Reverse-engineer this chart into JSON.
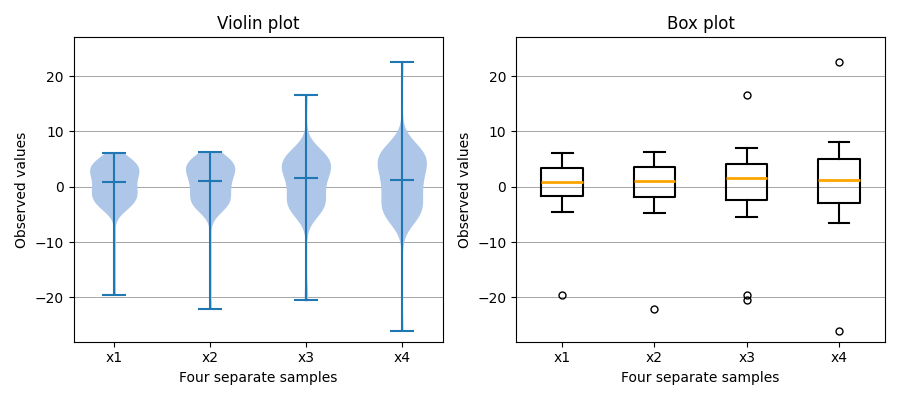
{
  "title_violin": "Violin plot",
  "title_box": "Box plot",
  "xlabel": "Four separate samples",
  "ylabel": "Observed values",
  "labels": [
    "x1",
    "x2",
    "x3",
    "x4"
  ],
  "violin_color": "#aec6e8",
  "violin_line_color": "#1f77b4",
  "median_color": "orange",
  "box_color": "black",
  "figsize": [
    9.0,
    4.0
  ],
  "dpi": 100,
  "data": {
    "x1": [
      3.7,
      2.1,
      -1.2,
      0.5,
      4.2,
      -3.1,
      1.8,
      -0.9,
      6.1,
      -2.3,
      3.0,
      -4.5,
      1.1,
      2.7,
      -1.8,
      5.3,
      -0.5,
      3.9,
      -2.1,
      0.8,
      4.5,
      -3.8,
      2.2,
      -1.5,
      3.3,
      0.1,
      -2.9,
      5.0,
      -1.0,
      2.6,
      -4.0,
      1.3,
      3.5,
      -0.7,
      2.9,
      -3.3,
      4.8,
      0.3,
      -2.5,
      1.6,
      3.1,
      -1.9,
      4.3,
      0.6,
      -3.6,
      2.4,
      -0.4,
      5.5,
      -2.0,
      3.2,
      -4.2,
      1.7,
      2.8,
      -1.3,
      4.0,
      -0.2,
      3.6,
      -2.7,
      0.9,
      4.7,
      -3.4,
      2.0,
      -0.8,
      3.8,
      0.4,
      -2.2,
      5.2,
      -1.6,
      3.4,
      -3.9,
      1.4,
      2.5,
      -0.6,
      4.4,
      -2.4,
      3.7,
      0.2,
      -1.1,
      4.9,
      -3.0,
      2.3,
      -0.3,
      3.3,
      -2.6,
      1.5,
      4.6,
      -1.7,
      2.1,
      -3.5,
      0.7,
      5.1,
      -2.8,
      3.0,
      -1.4,
      4.1,
      0.0,
      -2.0,
      5.4,
      -0.1,
      2.7,
      -19.5
    ],
    "x2": [
      4.1,
      -1.5,
      2.8,
      0.3,
      5.0,
      -2.7,
      3.3,
      -0.6,
      6.2,
      -3.0,
      2.0,
      -4.8,
      1.5,
      3.2,
      -2.1,
      5.5,
      0.1,
      4.2,
      -2.5,
      1.0,
      4.8,
      -4.0,
      2.6,
      -1.8,
      3.7,
      0.5,
      -3.2,
      5.3,
      -0.9,
      3.0,
      -4.3,
      1.8,
      3.9,
      -0.4,
      3.2,
      -3.5,
      5.1,
      0.7,
      -2.8,
      1.9,
      3.5,
      -2.0,
      4.6,
      0.9,
      -3.8,
      2.7,
      -0.2,
      5.8,
      -2.2,
      3.5,
      -4.5,
      2.0,
      3.1,
      -1.4,
      4.3,
      0.1,
      3.9,
      -2.9,
      1.2,
      5.0,
      -3.6,
      2.3,
      -0.7,
      4.1,
      0.8,
      -2.4,
      5.5,
      -1.7,
      3.7,
      -4.1,
      1.7,
      2.8,
      -0.5,
      4.7,
      -2.6,
      4.0,
      0.4,
      -1.3,
      5.2,
      -3.2,
      2.5,
      -0.1,
      3.6,
      -2.8,
      1.8,
      4.9,
      -1.9,
      2.4,
      -3.7,
      0.9,
      5.4,
      -3.0,
      3.3,
      -1.6,
      4.4,
      0.2,
      -2.2,
      5.7,
      0.0,
      3.0,
      -22.0
    ],
    "x3": [
      5.0,
      -2.0,
      3.5,
      1.0,
      6.5,
      -3.5,
      4.0,
      -1.0,
      7.0,
      -4.0,
      2.5,
      -5.5,
      2.0,
      4.0,
      -2.5,
      6.5,
      0.5,
      5.0,
      -3.0,
      1.5,
      5.5,
      -5.0,
      3.0,
      -2.0,
      4.5,
      0.8,
      -4.0,
      6.0,
      -1.5,
      3.5,
      -5.0,
      2.2,
      4.5,
      -0.5,
      4.0,
      -4.0,
      6.0,
      1.0,
      -3.5,
      2.5,
      4.0,
      -2.5,
      5.5,
      1.2,
      -4.5,
      3.2,
      -0.5,
      6.8,
      -2.8,
      4.0,
      -5.2,
      2.5,
      3.8,
      -1.5,
      5.0,
      0.5,
      4.5,
      -3.5,
      1.5,
      5.8,
      -4.2,
      2.8,
      -1.0,
      4.8,
      1.0,
      -3.0,
      6.2,
      -2.0,
      4.2,
      -4.8,
      2.0,
      3.2,
      -0.8,
      5.5,
      -3.2,
      4.8,
      0.5,
      -1.8,
      6.0,
      -3.8,
      3.0,
      -0.5,
      4.0,
      -3.2,
      2.2,
      5.5,
      -2.2,
      2.8,
      -4.2,
      1.2,
      6.5,
      -3.5,
      4.0,
      -2.0,
      5.0,
      0.2,
      -2.8,
      6.5,
      0.2,
      3.5,
      16.5,
      -19.5,
      -20.5
    ],
    "x4": [
      -0.5,
      2.5,
      -3.0,
      1.0,
      5.5,
      -4.5,
      3.0,
      -1.5,
      8.0,
      -5.0,
      1.5,
      -6.0,
      0.5,
      4.5,
      -3.5,
      7.0,
      -0.5,
      5.0,
      -4.0,
      0.5,
      6.0,
      -6.5,
      3.5,
      -2.5,
      5.0,
      1.0,
      -5.0,
      7.5,
      -2.0,
      4.0,
      -6.0,
      2.5,
      5.0,
      -1.0,
      4.5,
      -5.0,
      7.0,
      1.5,
      -4.0,
      3.0,
      5.0,
      -3.5,
      6.5,
      1.5,
      -5.5,
      4.0,
      -1.0,
      7.5,
      -3.0,
      5.0,
      -6.5,
      2.5,
      4.5,
      -2.0,
      6.0,
      0.5,
      5.5,
      -4.5,
      1.5,
      6.5,
      -5.2,
      3.0,
      -1.5,
      5.5,
      1.0,
      -4.0,
      7.0,
      -2.5,
      5.0,
      -6.0,
      2.0,
      4.0,
      -1.5,
      6.5,
      -4.0,
      5.5,
      0.5,
      -2.5,
      7.0,
      -5.0,
      3.5,
      -0.5,
      5.0,
      -4.5,
      2.5,
      6.0,
      -3.0,
      3.5,
      -5.5,
      0.5,
      7.5,
      -4.5,
      5.0,
      -2.5,
      6.0,
      0.0,
      -3.5,
      7.5,
      0.0,
      4.0,
      22.5,
      -26.0
    ]
  }
}
